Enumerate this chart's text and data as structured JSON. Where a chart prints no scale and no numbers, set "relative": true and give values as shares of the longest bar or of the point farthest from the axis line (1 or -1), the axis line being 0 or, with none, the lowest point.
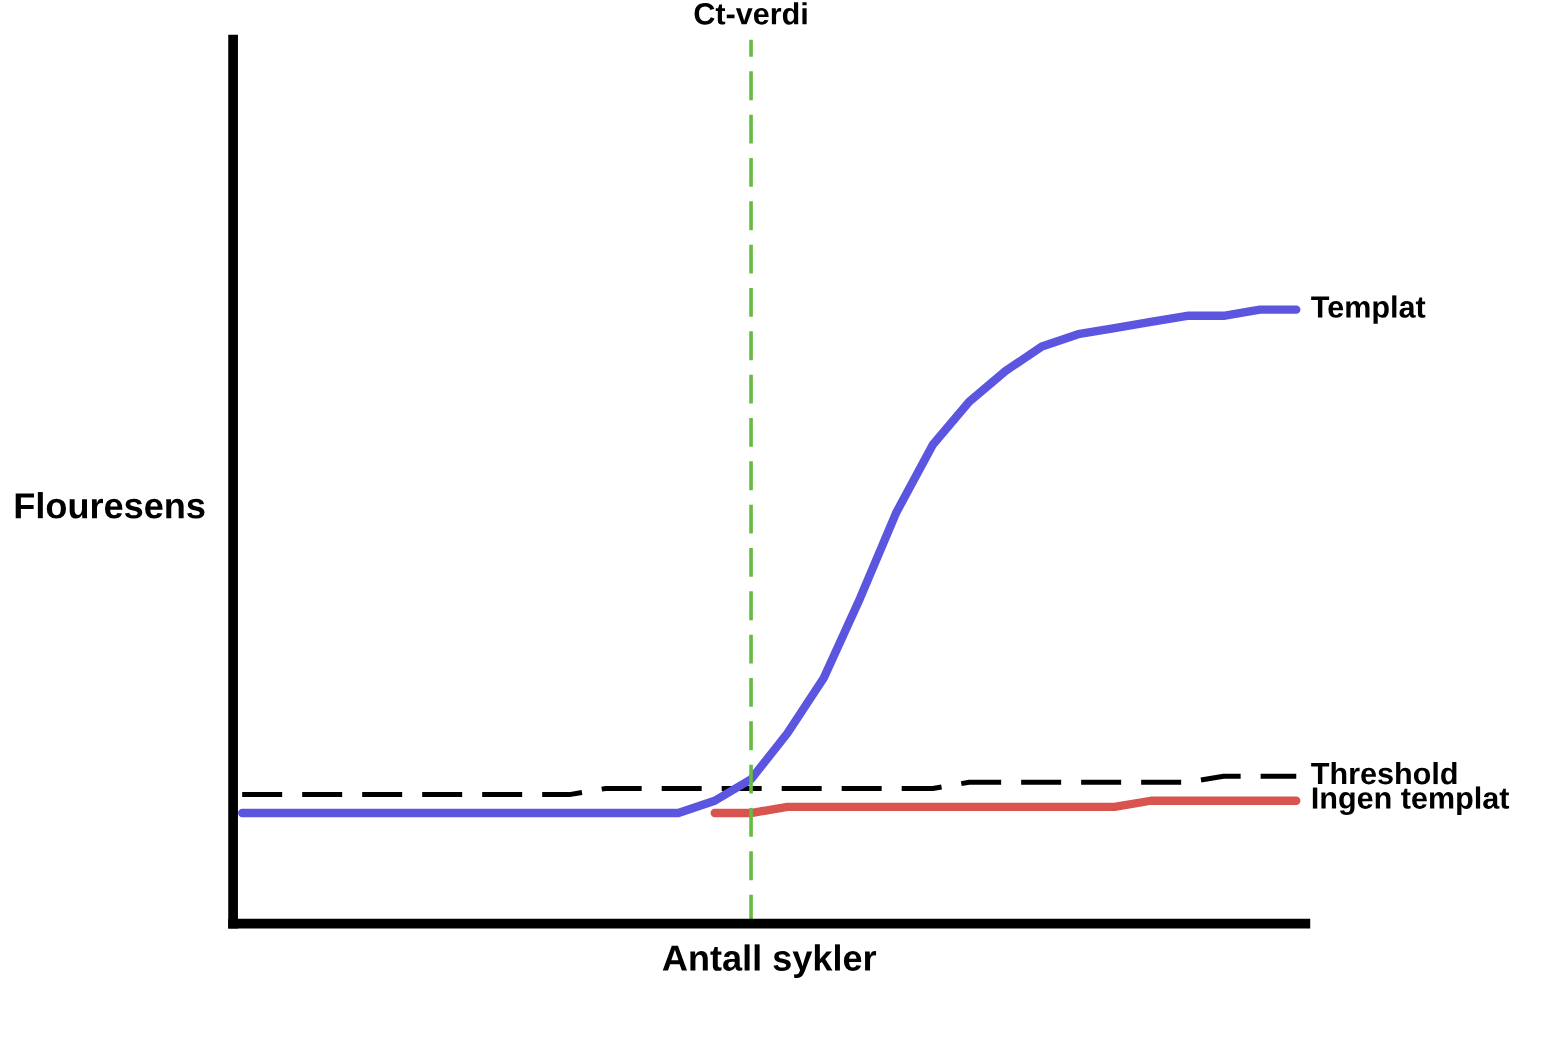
{
  "chart_data": {
    "type": "line",
    "relative": true,
    "xlabel": "Antall sykler",
    "ylabel": "Flouresens",
    "categories": [
      null,
      null,
      null,
      null,
      null,
      null,
      null,
      null,
      null,
      null,
      null,
      null,
      null,
      null,
      null,
      null,
      null,
      null,
      null,
      null,
      null,
      null,
      null,
      null,
      null,
      null,
      null,
      null,
      null,
      null
    ],
    "series": [
      {
        "name": "Ingen templat",
        "color": "#d9534f",
        "values": [
          null,
          null,
          null,
          null,
          null,
          null,
          null,
          null,
          null,
          null,
          null,
          null,
          null,
          0.18,
          0.18,
          0.19,
          0.19,
          0.19,
          0.19,
          0.19,
          0.19,
          0.19,
          0.19,
          0.19,
          0.19,
          0.2,
          0.2,
          0.2,
          0.2,
          0.2
        ]
      },
      {
        "name": "Threshold",
        "color": "#000000",
        "line_style": "dashed",
        "values": [
          0.21,
          0.21,
          0.21,
          0.21,
          0.21,
          0.21,
          0.21,
          0.21,
          0.21,
          0.21,
          0.22,
          0.22,
          0.22,
          0.22,
          0.22,
          0.22,
          0.22,
          0.22,
          0.22,
          0.22,
          0.23,
          0.23,
          0.23,
          0.23,
          0.23,
          0.23,
          0.23,
          0.24,
          0.24,
          0.24
        ]
      },
      {
        "name": "Templat",
        "color": "#5b55e0",
        "values": [
          0.18,
          0.18,
          0.18,
          0.18,
          0.18,
          0.18,
          0.18,
          0.18,
          0.18,
          0.18,
          0.18,
          0.18,
          0.18,
          0.2,
          0.235,
          0.31,
          0.4,
          0.53,
          0.67,
          0.78,
          0.85,
          0.9,
          0.94,
          0.96,
          0.97,
          0.98,
          0.99,
          0.99,
          1.0,
          1.0
        ]
      }
    ],
    "annotations": [
      "Ct-verdi"
    ],
    "grid": false,
    "legend": false
  }
}
